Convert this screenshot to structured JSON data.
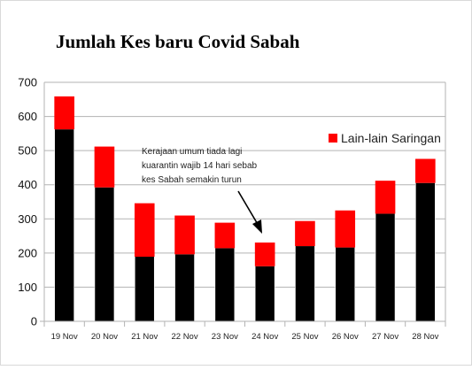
{
  "chart_data": {
    "type": "bar",
    "stacked": true,
    "title": "Jumlah Kes baru Covid Sabah",
    "xlabel": "",
    "ylabel": "",
    "categories": [
      "19 Nov",
      "20 Nov",
      "21 Nov",
      "22 Nov",
      "23 Nov",
      "24 Nov",
      "25 Nov",
      "26 Nov",
      "27 Nov",
      "28 Nov"
    ],
    "ylim": [
      0,
      700
    ],
    "yticks": [
      "0",
      "100",
      "200",
      "300",
      "400",
      "500",
      "600",
      "700"
    ],
    "grid": true,
    "series": [
      {
        "values": [
          563,
          393,
          190,
          197,
          215,
          162,
          221,
          217,
          316,
          406
        ],
        "color": "#000000"
      },
      {
        "name": "Lain-lain Saringan",
        "values": [
          95,
          118,
          155,
          112,
          73,
          68,
          72,
          107,
          95,
          69
        ],
        "color": "#ff0000"
      }
    ],
    "legend": {
      "position": "right",
      "label": "Lain-lain Saringan"
    },
    "annotation": {
      "lines": [
        "Kerajaan umum tiada lagi",
        "kuarantin wajib 14 hari sebab",
        "kes Sabah semakin turun"
      ],
      "points_to": "24 Nov"
    }
  }
}
